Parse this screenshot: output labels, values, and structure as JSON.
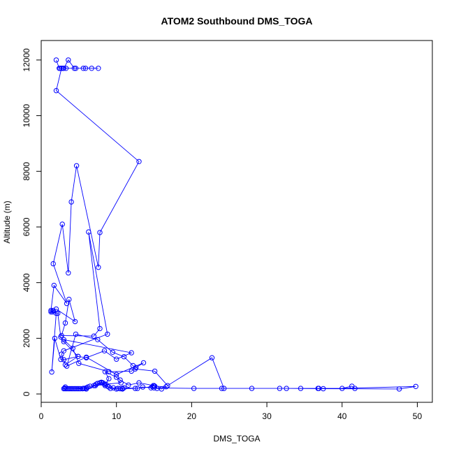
{
  "chart_data": {
    "type": "line",
    "title": "ATOM2 Southbound DMS_TOGA",
    "xlabel": "DMS_TOGA",
    "ylabel": "Altitude (m)",
    "xlim": [
      0,
      52
    ],
    "ylim": [
      -300,
      12700
    ],
    "x_ticks": [
      0,
      10,
      20,
      30,
      40,
      50
    ],
    "y_ticks": [
      0,
      2000,
      4000,
      6000,
      8000,
      10000,
      12000
    ],
    "grid": false,
    "legend": "none",
    "series_color": "#0000ff",
    "series": [
      {
        "x": [
          2.0,
          2.4,
          3.0,
          3.6,
          4.4,
          3.3,
          2.7,
          2.5,
          2.9,
          4.6,
          5.6,
          5.9,
          6.7,
          7.6,
          2.7,
          2.0,
          13.0,
          7.8,
          7.6,
          4.7,
          4.0,
          3.6,
          2.8,
          1.6,
          3.4,
          1.7,
          1.3,
          2.2,
          2.6,
          3.0,
          4.9,
          3.0,
          2.6,
          1.8,
          1.4,
          2.0,
          1.5,
          1.3,
          1.6,
          2.0,
          4.5,
          3.7,
          3.2,
          2.7,
          7.0,
          7.8,
          6.3,
          8.8,
          3.0,
          2.7,
          3.2,
          4.9,
          6.0,
          8.4,
          10.0,
          12.0,
          3.0,
          4.2,
          5.0,
          9.0,
          12.0,
          12.6,
          13.6,
          10.0,
          6.0,
          3.4,
          4.6,
          7.5,
          9.5,
          11.0,
          12.2,
          12.5,
          15.1,
          16.8,
          22.7,
          24.3,
          31.7,
          34.5,
          36.8,
          36.9,
          41.7,
          41.3,
          40.0,
          49.8,
          47.6,
          37.5,
          32.6,
          28.0,
          24.0,
          20.3,
          15.0,
          14.8,
          12.5,
          10.8,
          10.5,
          10.2,
          9.6,
          9.0,
          8.8,
          8.5,
          8.4,
          8.2,
          8.0,
          7.8,
          7.5,
          7.3,
          7.0,
          6.5,
          6.2,
          6.0,
          5.8,
          5.6,
          5.5,
          5.2,
          5.0,
          4.8,
          4.6,
          4.4,
          4.2,
          4.0,
          3.8,
          3.6,
          3.4,
          3.2,
          3.0,
          3.1,
          3.2,
          5.8,
          6.0,
          7.2,
          8.0,
          9.2,
          10.0,
          10.8,
          11.0,
          12.8,
          13.5,
          14.6,
          15.4,
          16.0,
          16.6,
          15.1,
          14.9,
          15.0,
          13.0,
          11.6,
          10.5,
          10.0,
          8.5,
          9.0,
          8.6,
          10.6
        ],
        "y": [
          12000,
          11700,
          11700,
          12000,
          11700,
          11700,
          11700,
          11700,
          11700,
          11700,
          11700,
          11700,
          11700,
          11700,
          11700,
          10900,
          8350,
          5800,
          4550,
          8200,
          6900,
          4350,
          6100,
          4680,
          3250,
          3900,
          3000,
          2900,
          2050,
          1880,
          1350,
          1230,
          1240,
          2000,
          790,
          2900,
          2950,
          2950,
          3000,
          3050,
          2600,
          3400,
          2550,
          2100,
          2080,
          2350,
          5820,
          2150,
          1550,
          1430,
          1050,
          1350,
          1300,
          1550,
          1250,
          1480,
          1950,
          1640,
          1100,
          800,
          820,
          950,
          1120,
          700,
          1320,
          1000,
          2150,
          1950,
          1500,
          1340,
          1020,
          900,
          820,
          300,
          1300,
          200,
          200,
          200,
          200,
          200,
          200,
          280,
          200,
          270,
          180,
          190,
          200,
          200,
          200,
          200,
          220,
          260,
          200,
          180,
          190,
          200,
          220,
          250,
          280,
          300,
          350,
          400,
          420,
          400,
          380,
          350,
          300,
          280,
          250,
          220,
          200,
          200,
          190,
          190,
          190,
          190,
          190,
          190,
          190,
          190,
          190,
          190,
          190,
          190,
          190,
          210,
          250,
          200,
          180,
          300,
          400,
          200,
          180,
          200,
          220,
          200,
          250,
          220,
          200,
          180,
          260,
          280,
          300,
          300,
          400,
          320,
          500,
          600,
          800,
          550,
          350,
          400
        ]
      }
    ]
  }
}
